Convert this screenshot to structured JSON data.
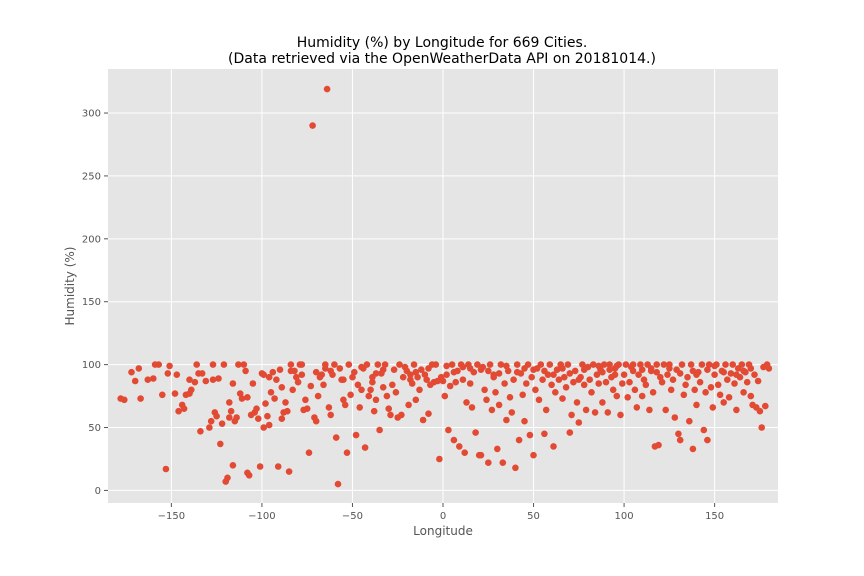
{
  "chart_data": {
    "type": "scatter",
    "title_line1": "Humidity (%) by Longitude for 669 Cities.",
    "title_line2": "(Data retrieved via the OpenWeatherData API on 20181014.)",
    "xlabel": "Longitude",
    "ylabel": "Humidity (%)",
    "xlim": [
      -185,
      185
    ],
    "ylim": [
      -10,
      335
    ],
    "xticks": [
      -150,
      -100,
      -50,
      0,
      50,
      100,
      150
    ],
    "yticks": [
      0,
      50,
      100,
      150,
      200,
      250,
      300
    ],
    "grid": true,
    "marker_color": "#e24a33",
    "background_color": "#e5e5e5",
    "points": [
      [
        -178,
        73
      ],
      [
        -176,
        72
      ],
      [
        -172,
        94
      ],
      [
        -170,
        87
      ],
      [
        -168,
        97
      ],
      [
        -167,
        73
      ],
      [
        -163,
        88
      ],
      [
        -160,
        89
      ],
      [
        -159,
        100
      ],
      [
        -157,
        100
      ],
      [
        -155,
        76
      ],
      [
        -153,
        17
      ],
      [
        -152,
        93
      ],
      [
        -151,
        99
      ],
      [
        -148,
        77
      ],
      [
        -146,
        63
      ],
      [
        -144,
        68
      ],
      [
        -143,
        65
      ],
      [
        -142,
        76
      ],
      [
        -140,
        77
      ],
      [
        -139,
        80
      ],
      [
        -137,
        86
      ],
      [
        -136,
        100
      ],
      [
        -135,
        93
      ],
      [
        -134,
        47
      ],
      [
        -133,
        93
      ],
      [
        -131,
        87
      ],
      [
        -129,
        50
      ],
      [
        -128,
        55
      ],
      [
        -127,
        100
      ],
      [
        -126,
        62
      ],
      [
        -125,
        59
      ],
      [
        -124,
        89
      ],
      [
        -123,
        37
      ],
      [
        -122,
        53
      ],
      [
        -121,
        100
      ],
      [
        -120,
        7
      ],
      [
        -119,
        10
      ],
      [
        -118,
        58
      ],
      [
        -117,
        63
      ],
      [
        -116,
        20
      ],
      [
        -115,
        55
      ],
      [
        -114,
        58
      ],
      [
        -113,
        100
      ],
      [
        -112,
        77
      ],
      [
        -111,
        73
      ],
      [
        -110,
        100
      ],
      [
        -109,
        95
      ],
      [
        -108,
        14
      ],
      [
        -107,
        12
      ],
      [
        -106,
        60
      ],
      [
        -105,
        85
      ],
      [
        -104,
        62
      ],
      [
        -103,
        65
      ],
      [
        -102,
        57
      ],
      [
        -101,
        19
      ],
      [
        -100,
        93
      ],
      [
        -99,
        50
      ],
      [
        -98,
        69
      ],
      [
        -97,
        59
      ],
      [
        -96,
        52
      ],
      [
        -95,
        78
      ],
      [
        -94,
        94
      ],
      [
        -93,
        73
      ],
      [
        -92,
        88
      ],
      [
        -91,
        19
      ],
      [
        -90,
        96
      ],
      [
        -89,
        57
      ],
      [
        -88,
        62
      ],
      [
        -87,
        70
      ],
      [
        -86,
        63
      ],
      [
        -85,
        15
      ],
      [
        -84,
        100
      ],
      [
        -83,
        80
      ],
      [
        -82,
        95
      ],
      [
        -81,
        90
      ],
      [
        -80,
        86
      ],
      [
        -79,
        100
      ],
      [
        -78,
        100
      ],
      [
        -77,
        64
      ],
      [
        -76,
        72
      ],
      [
        -75,
        65
      ],
      [
        -74,
        30
      ],
      [
        -73,
        83
      ],
      [
        -72,
        290
      ],
      [
        -71,
        58
      ],
      [
        -70,
        55
      ],
      [
        -69,
        75
      ],
      [
        -68,
        90
      ],
      [
        -67,
        92
      ],
      [
        -66,
        84
      ],
      [
        -65,
        100
      ],
      [
        -64,
        319
      ],
      [
        -63,
        66
      ],
      [
        -62,
        60
      ],
      [
        -61,
        92
      ],
      [
        -60,
        100
      ],
      [
        -59,
        42
      ],
      [
        -58,
        5
      ],
      [
        -57,
        97
      ],
      [
        -56,
        88
      ],
      [
        -55,
        72
      ],
      [
        -54,
        68
      ],
      [
        -53,
        30
      ],
      [
        -52,
        100
      ],
      [
        -51,
        76
      ],
      [
        -50,
        90
      ],
      [
        -49,
        94
      ],
      [
        -48,
        44
      ],
      [
        -47,
        84
      ],
      [
        -46,
        66
      ],
      [
        -45,
        80
      ],
      [
        -44,
        97
      ],
      [
        -43,
        34
      ],
      [
        -42,
        100
      ],
      [
        -41,
        75
      ],
      [
        -40,
        80
      ],
      [
        -39,
        90
      ],
      [
        -38,
        63
      ],
      [
        -37,
        72
      ],
      [
        -36,
        100
      ],
      [
        -35,
        48
      ],
      [
        -34,
        93
      ],
      [
        -33,
        82
      ],
      [
        -32,
        100
      ],
      [
        -31,
        75
      ],
      [
        -30,
        65
      ],
      [
        -29,
        60
      ],
      [
        -28,
        84
      ],
      [
        -27,
        96
      ],
      [
        -26,
        78
      ],
      [
        -25,
        58
      ],
      [
        -24,
        100
      ],
      [
        -23,
        60
      ],
      [
        -22,
        90
      ],
      [
        -21,
        98
      ],
      [
        -20,
        95
      ],
      [
        -19,
        68
      ],
      [
        -18,
        88
      ],
      [
        -17,
        85
      ],
      [
        -16,
        100
      ],
      [
        -15,
        72
      ],
      [
        -14,
        90
      ],
      [
        -13,
        80
      ],
      [
        -12,
        96
      ],
      [
        -11,
        56
      ],
      [
        -10,
        92
      ],
      [
        -9,
        88
      ],
      [
        -8,
        61
      ],
      [
        -7,
        84
      ],
      [
        -6,
        100
      ],
      [
        -5,
        86
      ],
      [
        -4,
        100
      ],
      [
        -3,
        87
      ],
      [
        -2,
        25
      ],
      [
        -1,
        90
      ],
      [
        0,
        87
      ],
      [
        1,
        75
      ],
      [
        2,
        92
      ],
      [
        3,
        48
      ],
      [
        4,
        83
      ],
      [
        5,
        100
      ],
      [
        6,
        40
      ],
      [
        7,
        86
      ],
      [
        8,
        95
      ],
      [
        9,
        35
      ],
      [
        10,
        100
      ],
      [
        11,
        88
      ],
      [
        12,
        30
      ],
      [
        13,
        70
      ],
      [
        14,
        100
      ],
      [
        15,
        85
      ],
      [
        16,
        66
      ],
      [
        17,
        94
      ],
      [
        18,
        46
      ],
      [
        19,
        100
      ],
      [
        20,
        28
      ],
      [
        21,
        28
      ],
      [
        22,
        98
      ],
      [
        23,
        80
      ],
      [
        24,
        72
      ],
      [
        25,
        22
      ],
      [
        26,
        100
      ],
      [
        27,
        64
      ],
      [
        28,
        90
      ],
      [
        29,
        78
      ],
      [
        30,
        33
      ],
      [
        31,
        68
      ],
      [
        32,
        100
      ],
      [
        33,
        22
      ],
      [
        34,
        85
      ],
      [
        35,
        56
      ],
      [
        36,
        95
      ],
      [
        37,
        74
      ],
      [
        38,
        62
      ],
      [
        39,
        88
      ],
      [
        40,
        18
      ],
      [
        41,
        100
      ],
      [
        42,
        40
      ],
      [
        43,
        93
      ],
      [
        44,
        76
      ],
      [
        45,
        55
      ],
      [
        46,
        85
      ],
      [
        47,
        100
      ],
      [
        48,
        44
      ],
      [
        49,
        90
      ],
      [
        50,
        28
      ],
      [
        51,
        80
      ],
      [
        52,
        97
      ],
      [
        53,
        72
      ],
      [
        54,
        100
      ],
      [
        55,
        88
      ],
      [
        56,
        45
      ],
      [
        57,
        64
      ],
      [
        58,
        92
      ],
      [
        59,
        100
      ],
      [
        60,
        84
      ],
      [
        61,
        35
      ],
      [
        62,
        78
      ],
      [
        63,
        96
      ],
      [
        64,
        88
      ],
      [
        65,
        100
      ],
      [
        66,
        73
      ],
      [
        67,
        90
      ],
      [
        68,
        82
      ],
      [
        69,
        100
      ],
      [
        70,
        46
      ],
      [
        71,
        60
      ],
      [
        72,
        86
      ],
      [
        73,
        95
      ],
      [
        74,
        70
      ],
      [
        75,
        54
      ],
      [
        76,
        90
      ],
      [
        77,
        100
      ],
      [
        78,
        84
      ],
      [
        79,
        64
      ],
      [
        80,
        98
      ],
      [
        81,
        88
      ],
      [
        82,
        78
      ],
      [
        83,
        100
      ],
      [
        84,
        62
      ],
      [
        85,
        92
      ],
      [
        86,
        85
      ],
      [
        87,
        96
      ],
      [
        88,
        70
      ],
      [
        89,
        100
      ],
      [
        90,
        86
      ],
      [
        91,
        62
      ],
      [
        92,
        100
      ],
      [
        93,
        90
      ],
      [
        94,
        80
      ],
      [
        95,
        97
      ],
      [
        96,
        75
      ],
      [
        97,
        100
      ],
      [
        98,
        60
      ],
      [
        99,
        85
      ],
      [
        100,
        92
      ],
      [
        101,
        100
      ],
      [
        102,
        74
      ],
      [
        103,
        86
      ],
      [
        104,
        98
      ],
      [
        105,
        100
      ],
      [
        106,
        80
      ],
      [
        107,
        66
      ],
      [
        108,
        92
      ],
      [
        109,
        100
      ],
      [
        110,
        75
      ],
      [
        111,
        88
      ],
      [
        112,
        84
      ],
      [
        113,
        100
      ],
      [
        114,
        64
      ],
      [
        115,
        95
      ],
      [
        116,
        78
      ],
      [
        117,
        35
      ],
      [
        118,
        100
      ],
      [
        119,
        36
      ],
      [
        120,
        90
      ],
      [
        121,
        86
      ],
      [
        122,
        100
      ],
      [
        123,
        64
      ],
      [
        124,
        92
      ],
      [
        125,
        100
      ],
      [
        126,
        80
      ],
      [
        127,
        88
      ],
      [
        128,
        58
      ],
      [
        129,
        96
      ],
      [
        130,
        45
      ],
      [
        131,
        40
      ],
      [
        132,
        100
      ],
      [
        133,
        76
      ],
      [
        134,
        84
      ],
      [
        135,
        90
      ],
      [
        136,
        55
      ],
      [
        137,
        100
      ],
      [
        138,
        33
      ],
      [
        139,
        80
      ],
      [
        140,
        68
      ],
      [
        141,
        94
      ],
      [
        142,
        86
      ],
      [
        143,
        100
      ],
      [
        144,
        48
      ],
      [
        145,
        78
      ],
      [
        146,
        40
      ],
      [
        147,
        100
      ],
      [
        148,
        82
      ],
      [
        149,
        66
      ],
      [
        150,
        92
      ],
      [
        151,
        100
      ],
      [
        152,
        84
      ],
      [
        153,
        76
      ],
      [
        154,
        95
      ],
      [
        155,
        70
      ],
      [
        156,
        100
      ],
      [
        157,
        88
      ],
      [
        158,
        74
      ],
      [
        159,
        93
      ],
      [
        160,
        100
      ],
      [
        161,
        85
      ],
      [
        162,
        64
      ],
      [
        163,
        97
      ],
      [
        164,
        90
      ],
      [
        165,
        100
      ],
      [
        166,
        78
      ],
      [
        167,
        94
      ],
      [
        168,
        86
      ],
      [
        169,
        100
      ],
      [
        170,
        75
      ],
      [
        171,
        68
      ],
      [
        172,
        92
      ],
      [
        173,
        66
      ],
      [
        174,
        87
      ],
      [
        175,
        63
      ],
      [
        176,
        50
      ],
      [
        177,
        98
      ],
      [
        178,
        67
      ],
      [
        179,
        100
      ],
      [
        180,
        97
      ],
      [
        -127,
        88
      ],
      [
        -96,
        90
      ],
      [
        -62,
        95
      ],
      [
        -15,
        94
      ],
      [
        15,
        97
      ],
      [
        35,
        99
      ],
      [
        50,
        96
      ],
      [
        75,
        88
      ],
      [
        95,
        92
      ],
      [
        125,
        97
      ],
      [
        150,
        99
      ],
      [
        -116,
        85
      ],
      [
        -84,
        95
      ],
      [
        -55,
        88
      ],
      [
        -33,
        96
      ],
      [
        6,
        94
      ],
      [
        28,
        92
      ],
      [
        66,
        97
      ],
      [
        88,
        94
      ],
      [
        110,
        96
      ],
      [
        140,
        92
      ],
      [
        166,
        95
      ],
      [
        -140,
        88
      ],
      [
        -108,
        74
      ],
      [
        -78,
        92
      ],
      [
        -45,
        98
      ],
      [
        -18,
        92
      ],
      [
        21,
        96
      ],
      [
        41,
        94
      ],
      [
        61,
        92
      ],
      [
        86,
        99
      ],
      [
        105,
        95
      ],
      [
        131,
        93
      ],
      [
        155,
        94
      ],
      [
        -147,
        92
      ],
      [
        -118,
        70
      ],
      [
        -89,
        82
      ],
      [
        -65,
        97
      ],
      [
        -39,
        86
      ],
      [
        -8,
        97
      ],
      [
        11,
        98
      ],
      [
        31,
        93
      ],
      [
        56,
        95
      ],
      [
        78,
        96
      ],
      [
        96,
        99
      ],
      [
        118,
        94
      ],
      [
        146,
        96
      ],
      [
        170,
        97
      ],
      [
        -99,
        92
      ],
      [
        -70,
        94
      ],
      [
        -37,
        93
      ],
      [
        2,
        99
      ],
      [
        25,
        95
      ],
      [
        45,
        97
      ],
      [
        70,
        93
      ],
      [
        92,
        96
      ],
      [
        115,
        97
      ],
      [
        138,
        95
      ],
      [
        162,
        92
      ]
    ]
  }
}
